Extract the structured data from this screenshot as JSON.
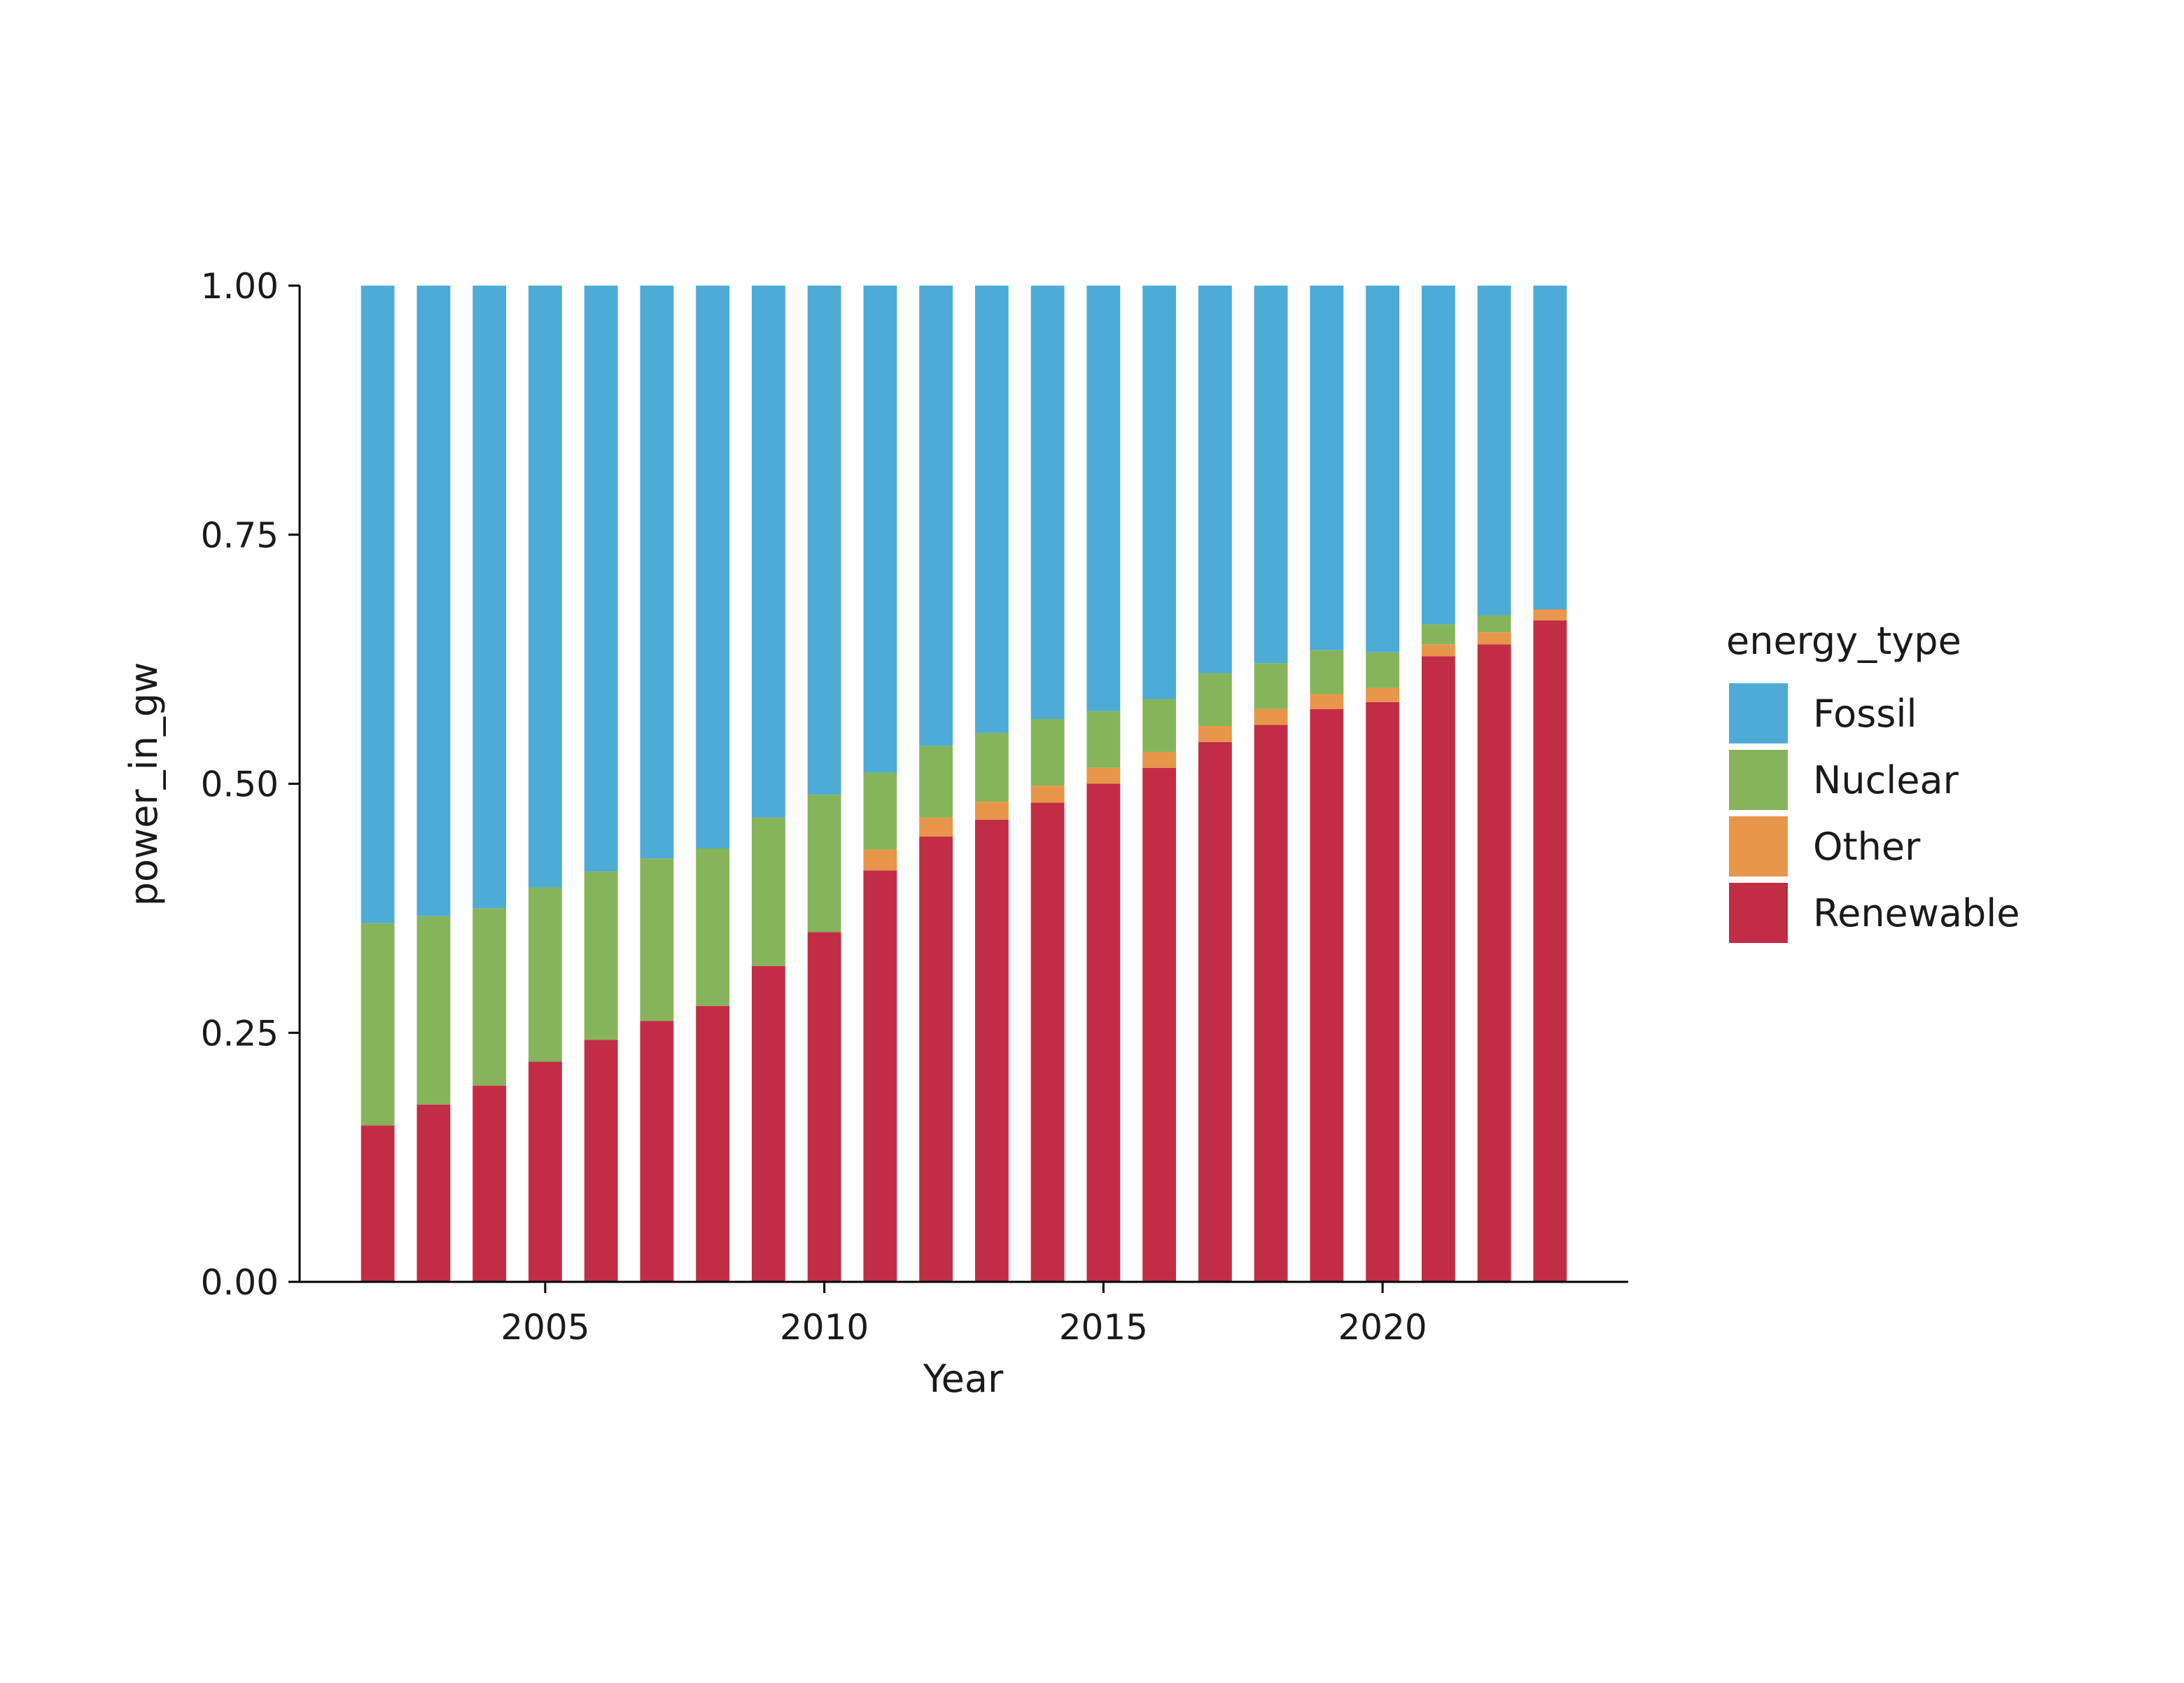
{
  "chart_data": {
    "type": "bar",
    "stacked": true,
    "xlabel": "Year",
    "ylabel": "power_in_gw",
    "ylim": [
      0,
      1
    ],
    "xlim": [
      2000.6,
      2024.4
    ],
    "grid": false,
    "legend_position": "right",
    "legend_title": "energy_type",
    "x_ticks": [
      2005,
      2010,
      2015,
      2020
    ],
    "x_tick_labels": [
      "2005",
      "2010",
      "2015",
      "2020"
    ],
    "y_ticks": [
      0,
      0.25,
      0.5,
      0.75,
      1
    ],
    "y_tick_labels": [
      "0.00",
      "0.25",
      "0.50",
      "0.75",
      "1.00"
    ],
    "x": [
      2002,
      2003,
      2004,
      2005,
      2006,
      2007,
      2008,
      2009,
      2010,
      2011,
      2012,
      2013,
      2014,
      2015,
      2016,
      2017,
      2018,
      2019,
      2020,
      2021,
      2022,
      2023
    ],
    "series": [
      {
        "name": "Renewable",
        "color": "#c22d46",
        "values": [
          0.157,
          0.178,
          0.197,
          0.221,
          0.243,
          0.262,
          0.277,
          0.317,
          0.351,
          0.413,
          0.447,
          0.464,
          0.481,
          0.5,
          0.516,
          0.542,
          0.559,
          0.575,
          0.582,
          0.628,
          0.64,
          0.664
        ]
      },
      {
        "name": "Other",
        "color": "#e8964a",
        "values": [
          0.0,
          0.0,
          0.0,
          0.0,
          0.0,
          0.0,
          0.0,
          0.0,
          0.0,
          0.021,
          0.019,
          0.018,
          0.017,
          0.016,
          0.016,
          0.016,
          0.016,
          0.015,
          0.014,
          0.012,
          0.012,
          0.011
        ]
      },
      {
        "name": "Nuclear",
        "color": "#86b45b",
        "values": [
          0.203,
          0.189,
          0.178,
          0.175,
          0.169,
          0.163,
          0.158,
          0.149,
          0.138,
          0.077,
          0.072,
          0.069,
          0.067,
          0.057,
          0.053,
          0.053,
          0.046,
          0.044,
          0.036,
          0.02,
          0.017,
          0.0
        ]
      },
      {
        "name": "Fossil",
        "color": "#4dabd6",
        "values": [
          0.64,
          0.633,
          0.625,
          0.604,
          0.588,
          0.575,
          0.565,
          0.534,
          0.511,
          0.489,
          0.462,
          0.449,
          0.435,
          0.427,
          0.415,
          0.389,
          0.379,
          0.366,
          0.368,
          0.34,
          0.331,
          0.325
        ]
      }
    ],
    "legend_order": [
      "Fossil",
      "Nuclear",
      "Other",
      "Renewable"
    ]
  }
}
